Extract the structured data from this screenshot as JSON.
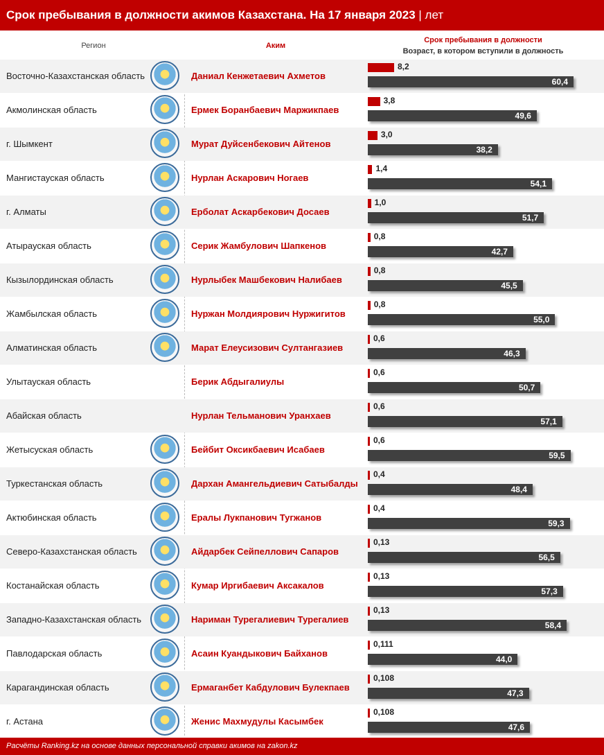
{
  "title": "Срок пребывания в должности акимов Казахстана. На 17 января 2023",
  "title_unit": "| лет",
  "headers": {
    "region": "Регион",
    "akim": "Аким",
    "tenure": "Срок пребывания в должности",
    "age": "Возраст, в котором вступили в должность"
  },
  "footer": "Расчёты Ranking.kz на основе данных персональной справки акимов на zakon.kz",
  "colors": {
    "accent": "#c00000",
    "age_bar": "#404040"
  },
  "chart_data": {
    "type": "bar",
    "tenure_max": 8.2,
    "age_max": 60.4,
    "rows": [
      {
        "region": "Восточно-Казахстанская область",
        "akim": "Даниал Кенжетаевич Ахметов",
        "tenure": "8,2",
        "tenure_value": 8.2,
        "age": "60,4",
        "age_value": 60.4,
        "logo": "emblem-east-kazakhstan-icon"
      },
      {
        "region": "Акмолинская область",
        "akim": "Ермек Боранбаевич Маржикпаев",
        "tenure": "3,8",
        "tenure_value": 3.8,
        "age": "49,6",
        "age_value": 49.6,
        "logo": "emblem-akmola-icon"
      },
      {
        "region": "г. Шымкент",
        "akim": "Мурат Дуйсенбекович Айтенов",
        "tenure": "3,0",
        "tenure_value": 3.0,
        "age": "38,2",
        "age_value": 38.2,
        "logo": "emblem-shymkent-icon"
      },
      {
        "region": "Мангистауская область",
        "akim": "Нурлан Аскарович Ногаев",
        "tenure": "1,4",
        "tenure_value": 1.4,
        "age": "54,1",
        "age_value": 54.1,
        "logo": "emblem-mangystau-icon"
      },
      {
        "region": "г. Алматы",
        "akim": "Ерболат Аскарбекович Досаев",
        "tenure": "1,0",
        "tenure_value": 1.0,
        "age": "51,7",
        "age_value": 51.7,
        "logo": "emblem-almaty-city-icon"
      },
      {
        "region": "Атырауская область",
        "akim": "Серик Жамбулович Шапкенов",
        "tenure": "0,8",
        "tenure_value": 0.8,
        "age": "42,7",
        "age_value": 42.7,
        "logo": "emblem-atyrau-icon"
      },
      {
        "region": "Кызылординская область",
        "akim": "Нурлыбек Машбекович Налибаев",
        "tenure": "0,8",
        "tenure_value": 0.8,
        "age": "45,5",
        "age_value": 45.5,
        "logo": "emblem-kyzylorda-icon"
      },
      {
        "region": "Жамбылская область",
        "akim": "Нуржан Молдиярович Нуржигитов",
        "tenure": "0,8",
        "tenure_value": 0.8,
        "age": "55,0",
        "age_value": 55.0,
        "logo": "emblem-zhambyl-icon"
      },
      {
        "region": "Алматинская область",
        "akim": "Марат Елеусизович Султангазиев",
        "tenure": "0,6",
        "tenure_value": 0.6,
        "age": "46,3",
        "age_value": 46.3,
        "logo": "emblem-almaty-region-icon"
      },
      {
        "region": "Улытауская область",
        "akim": "Берик Абдыгалиулы",
        "tenure": "0,6",
        "tenure_value": 0.6,
        "age": "50,7",
        "age_value": 50.7,
        "logo": ""
      },
      {
        "region": "Абайская область",
        "akim": "Нурлан Тельманович Уранхаев",
        "tenure": "0,6",
        "tenure_value": 0.6,
        "age": "57,1",
        "age_value": 57.1,
        "logo": ""
      },
      {
        "region": "Жетысуская область",
        "akim": "Бейбит Оксикбаевич Исабаев",
        "tenure": "0,6",
        "tenure_value": 0.6,
        "age": "59,5",
        "age_value": 59.5,
        "logo": "emblem-zhetysu-icon"
      },
      {
        "region": "Туркестанская область",
        "akim": "Дархан Амангельдиевич Сатыбалды",
        "tenure": "0,4",
        "tenure_value": 0.4,
        "age": "48,4",
        "age_value": 48.4,
        "logo": "emblem-turkestan-icon"
      },
      {
        "region": "Актюбинская область",
        "akim": "Ералы Лукпанович Тугжанов",
        "tenure": "0,4",
        "tenure_value": 0.4,
        "age": "59,3",
        "age_value": 59.3,
        "logo": "emblem-aktobe-icon"
      },
      {
        "region": "Северо-Казахстанская область",
        "akim": "Айдарбек Сейпеллович Сапаров",
        "tenure": "0,13",
        "tenure_value": 0.13,
        "age": "56,5",
        "age_value": 56.5,
        "logo": "emblem-north-kazakhstan-icon"
      },
      {
        "region": "Костанайская область",
        "akim": "Кумар Иргибаевич Аксакалов",
        "tenure": "0,13",
        "tenure_value": 0.13,
        "age": "57,3",
        "age_value": 57.3,
        "logo": "emblem-kostanay-icon"
      },
      {
        "region": "Западно-Казахстанская область",
        "akim": "Нариман Турегалиевич Турегалиев",
        "tenure": "0,13",
        "tenure_value": 0.13,
        "age": "58,4",
        "age_value": 58.4,
        "logo": "emblem-west-kazakhstan-icon"
      },
      {
        "region": "Павлодарская область",
        "akim": "Асаин Куандыкович Байханов",
        "tenure": "0,111",
        "tenure_value": 0.111,
        "age": "44,0",
        "age_value": 44.0,
        "logo": "emblem-pavlodar-icon"
      },
      {
        "region": "Карагандинская область",
        "akim": "Ермаганбет Кабдулович Булекпаев",
        "tenure": "0,108",
        "tenure_value": 0.108,
        "age": "47,3",
        "age_value": 47.3,
        "logo": "emblem-karaganda-icon"
      },
      {
        "region": "г. Астана",
        "akim": "Женис Махмудулы Касымбек",
        "tenure": "0,108",
        "tenure_value": 0.108,
        "age": "47,6",
        "age_value": 47.6,
        "logo": "emblem-astana-icon"
      }
    ]
  }
}
